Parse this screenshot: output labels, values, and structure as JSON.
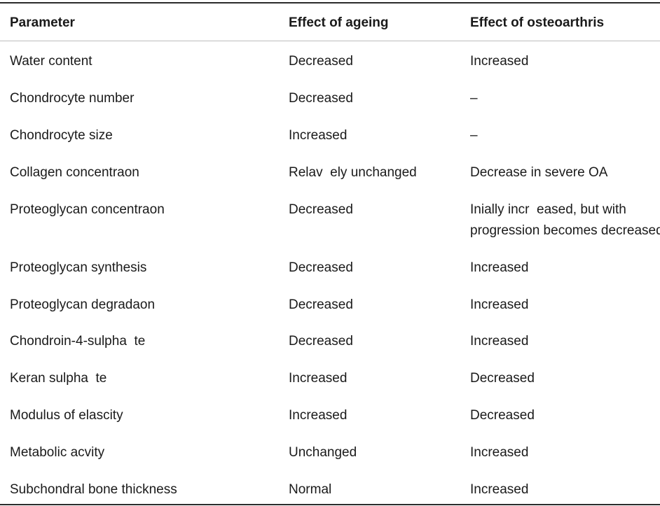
{
  "table": {
    "headers": {
      "parameter": "Parameter",
      "ageing": "Effect of ageing",
      "osteoarthritis": "Effect of osteoarthris"
    },
    "rows": [
      {
        "parameter": "Water content",
        "ageing": "Decreased",
        "osteoarthritis": "Increased"
      },
      {
        "parameter": "Chondrocyte number",
        "ageing": "Decreased",
        "osteoarthritis": "–"
      },
      {
        "parameter": "Chondrocyte size",
        "ageing": "Increased",
        "osteoarthritis": "–"
      },
      {
        "parameter": "Collagen concentraon",
        "ageing": "Relav  ely unchanged",
        "osteoarthritis": "Decrease in severe OA"
      },
      {
        "parameter": "Proteoglycan concentraon",
        "ageing": "Decreased",
        "osteoarthritis": "Inially incr  eased, but with\nprogression becomes decreased"
      },
      {
        "parameter": "Proteoglycan synthesis",
        "ageing": "Decreased",
        "osteoarthritis": "Increased"
      },
      {
        "parameter": "Proteoglycan degradaon",
        "ageing": "Decreased",
        "osteoarthritis": "Increased"
      },
      {
        "parameter": "Chondroin-4-sulpha  te",
        "ageing": "Decreased",
        "osteoarthritis": "Increased"
      },
      {
        "parameter": "Keran sulpha  te",
        "ageing": "Increased",
        "osteoarthritis": "Decreased"
      },
      {
        "parameter": "Modulus of elascity",
        "ageing": "Increased",
        "osteoarthritis": "Decreased"
      },
      {
        "parameter": "Metabolic acvity",
        "ageing": "Unchanged",
        "osteoarthritis": "Increased"
      },
      {
        "parameter": "Subchondral bone thickness",
        "ageing": "Normal",
        "osteoarthritis": "Increased"
      }
    ]
  }
}
